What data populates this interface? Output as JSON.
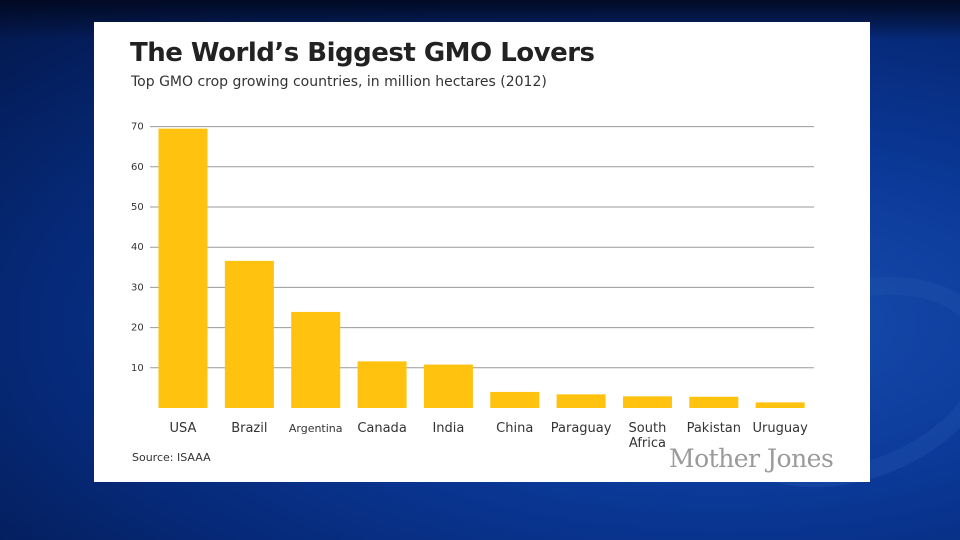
{
  "page": {
    "logo": "Mother Jones",
    "source": "Source: ISAAA"
  },
  "colors": {
    "bar": "#FFC20E",
    "grid": "#9a9a9a",
    "text": "#333333"
  },
  "chart_data": {
    "type": "bar",
    "title": "The World’s Biggest GMO Lovers",
    "subtitle": "Top GMO crop growing countries, in million hectares (2012)",
    "xlabel": "",
    "ylabel": "",
    "ylim": [
      0,
      70
    ],
    "yticks": [
      10,
      20,
      30,
      40,
      50,
      60,
      70
    ],
    "grid": true,
    "categories": [
      "USA",
      "Brazil",
      "Argentina",
      "Canada",
      "India",
      "China",
      "Paraguay",
      "South Africa",
      "Pakistan",
      "Uruguay"
    ],
    "category_lines": [
      [
        "USA"
      ],
      [
        "Brazil"
      ],
      [
        "Argentina"
      ],
      [
        "Canada"
      ],
      [
        "India"
      ],
      [
        "China"
      ],
      [
        "Paraguay"
      ],
      [
        "South",
        "Africa"
      ],
      [
        "Pakistan"
      ],
      [
        "Uruguay"
      ]
    ],
    "values": [
      69.5,
      36.6,
      23.9,
      11.6,
      10.8,
      4.0,
      3.4,
      2.9,
      2.8,
      1.4
    ]
  }
}
